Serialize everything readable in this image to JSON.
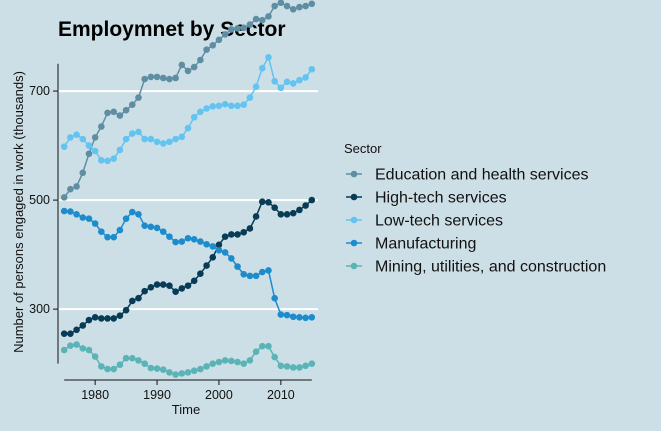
{
  "chart_data": {
    "type": "line",
    "title": "Employmnet by Sector",
    "xlabel": "Time",
    "ylabel": "Number of persons engaged in work (thousands)",
    "xlim": [
      1974,
      2016
    ],
    "ylim": [
      170,
      790
    ],
    "x_ticks": [
      1980,
      1990,
      2000,
      2010
    ],
    "y_ticks": [
      300,
      500,
      700
    ],
    "grid": "horizontal major lines only",
    "legend_title": "Sector",
    "legend_position": "right",
    "x": [
      1975,
      1976,
      1977,
      1978,
      1979,
      1980,
      1981,
      1982,
      1983,
      1984,
      1985,
      1986,
      1987,
      1988,
      1989,
      1990,
      1991,
      1992,
      1993,
      1994,
      1995,
      1996,
      1997,
      1998,
      1999,
      2000,
      2001,
      2002,
      2003,
      2004,
      2005,
      2006,
      2007,
      2008,
      2009,
      2010,
      2011,
      2012,
      2013,
      2014,
      2015
    ],
    "series": [
      {
        "name": "Education and health services",
        "color": "#5f8ea3",
        "values": [
          505,
          520,
          525,
          550,
          585,
          615,
          635,
          660,
          662,
          655,
          665,
          675,
          688,
          722,
          726,
          726,
          724,
          722,
          724,
          748,
          737,
          744,
          757,
          776,
          784,
          794,
          804,
          813,
          815,
          816,
          822,
          832,
          830,
          837,
          856,
          862,
          856,
          850,
          854,
          856,
          860
        ]
      },
      {
        "name": "High-tech services",
        "color": "#073b56",
        "values": [
          255,
          255,
          262,
          270,
          280,
          285,
          283,
          283,
          283,
          288,
          298,
          315,
          320,
          333,
          340,
          345,
          345,
          343,
          332,
          338,
          343,
          352,
          365,
          380,
          395,
          418,
          433,
          437,
          437,
          441,
          448,
          470,
          497,
          496,
          486,
          474,
          474,
          476,
          482,
          490,
          500
        ]
      },
      {
        "name": "Low-tech services",
        "color": "#63c3f1",
        "values": [
          598,
          615,
          620,
          612,
          600,
          590,
          573,
          572,
          576,
          592,
          612,
          622,
          625,
          612,
          612,
          607,
          604,
          607,
          612,
          616,
          632,
          652,
          662,
          668,
          672,
          673,
          676,
          673,
          673,
          675,
          688,
          708,
          742,
          762,
          718,
          706,
          717,
          714,
          720,
          725,
          740
        ]
      },
      {
        "name": "Manufacturing",
        "color": "#1c8ccc",
        "values": [
          480,
          479,
          474,
          468,
          466,
          457,
          442,
          432,
          432,
          445,
          466,
          478,
          474,
          453,
          451,
          449,
          442,
          433,
          423,
          424,
          430,
          428,
          424,
          419,
          415,
          408,
          404,
          393,
          378,
          364,
          361,
          361,
          368,
          371,
          320,
          290,
          289,
          286,
          285,
          284,
          285
        ]
      },
      {
        "name": "Mining, utilities, and construction",
        "color": "#5ab4b6",
        "values": [
          225,
          233,
          235,
          228,
          225,
          213,
          195,
          190,
          190,
          198,
          210,
          210,
          206,
          200,
          192,
          191,
          189,
          184,
          180,
          182,
          184,
          187,
          190,
          195,
          200,
          203,
          206,
          205,
          203,
          200,
          206,
          222,
          232,
          232,
          212,
          196,
          195,
          193,
          193,
          196,
          200
        ]
      }
    ]
  }
}
